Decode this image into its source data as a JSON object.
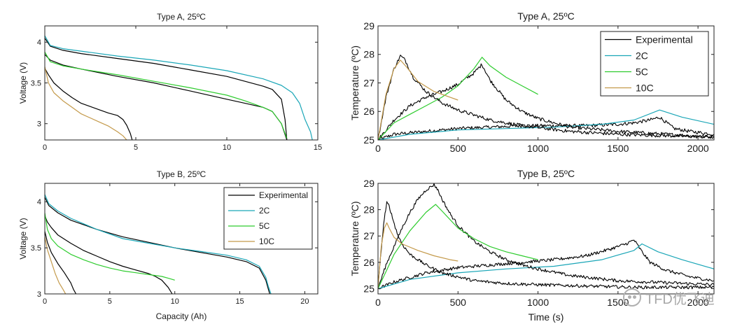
{
  "chart_data": [
    {
      "id": "p1",
      "type": "line",
      "title": "Type A, 25ºC",
      "xlabel": "",
      "ylabel": "Voltage (V)",
      "xlim": [
        0,
        15
      ],
      "ylim": [
        2.8,
        4.2
      ],
      "xticks": [
        0,
        5,
        10,
        15
      ],
      "yticks": [
        3,
        3.5,
        4
      ],
      "tick_labels_x": [
        "0",
        "5",
        "10",
        "15"
      ],
      "tick_labels_y": [
        "3",
        "3.5",
        "4"
      ],
      "legend": null,
      "series": [
        {
          "color": "#000000",
          "x": [
            0,
            0.3,
            1,
            2,
            4,
            6,
            8,
            10,
            11,
            12,
            12.5,
            13,
            13.2,
            13.3
          ],
          "y": [
            4.05,
            3.95,
            3.9,
            3.86,
            3.8,
            3.74,
            3.66,
            3.58,
            3.52,
            3.46,
            3.42,
            3.3,
            3.05,
            2.8
          ]
        },
        {
          "color": "#1aa6b7",
          "x": [
            0,
            0.3,
            1,
            2,
            4,
            6,
            8,
            10,
            12,
            13,
            13.6,
            14,
            14.3,
            14.6,
            14.7
          ],
          "y": [
            4.08,
            3.96,
            3.92,
            3.89,
            3.83,
            3.78,
            3.72,
            3.65,
            3.55,
            3.47,
            3.38,
            3.25,
            3.05,
            2.9,
            2.8
          ]
        },
        {
          "color": "#000000",
          "x": [
            0,
            0.3,
            1,
            2,
            4,
            6,
            8,
            10,
            11,
            12,
            12.5,
            13,
            13.3
          ],
          "y": [
            3.85,
            3.78,
            3.72,
            3.67,
            3.58,
            3.5,
            3.4,
            3.3,
            3.25,
            3.2,
            3.15,
            3.0,
            2.8
          ]
        },
        {
          "color": "#2ecc2e",
          "x": [
            0,
            0.3,
            1,
            2,
            4,
            6,
            8,
            10,
            11,
            12,
            12.5,
            13,
            13.3
          ],
          "y": [
            3.88,
            3.76,
            3.71,
            3.67,
            3.6,
            3.52,
            3.44,
            3.35,
            3.28,
            3.2,
            3.15,
            3.0,
            2.82
          ]
        },
        {
          "color": "#000000",
          "x": [
            0,
            0.2,
            0.5,
            1,
            1.5,
            2,
            3,
            3.5,
            4,
            4.3,
            4.5,
            4.7,
            4.8
          ],
          "y": [
            3.68,
            3.6,
            3.5,
            3.4,
            3.32,
            3.25,
            3.17,
            3.13,
            3.1,
            3.05,
            2.98,
            2.88,
            2.8
          ]
        },
        {
          "color": "#c49a4b",
          "x": [
            0,
            0.2,
            0.5,
            1,
            1.5,
            2,
            3,
            3.5,
            4,
            4.3,
            4.5
          ],
          "y": [
            3.7,
            3.5,
            3.38,
            3.28,
            3.2,
            3.12,
            3.02,
            2.97,
            2.9,
            2.85,
            2.8
          ]
        }
      ]
    },
    {
      "id": "p2",
      "type": "line",
      "title": "Type A, 25ºC",
      "xlabel": "",
      "ylabel": "Temperature (ºC)",
      "xlim": [
        0,
        2100
      ],
      "ylim": [
        25,
        29
      ],
      "xticks": [
        0,
        500,
        1000,
        1500,
        2000
      ],
      "yticks": [
        25,
        26,
        27,
        28,
        29
      ],
      "tick_labels_x": [
        "0",
        "500",
        "1000",
        "1500",
        "2000"
      ],
      "tick_labels_y": [
        "25",
        "26",
        "27",
        "28",
        "29"
      ],
      "legend": {
        "position": "top-right",
        "entries": [
          {
            "label": "Experimental",
            "color": "#000000"
          },
          {
            "label": "2C",
            "color": "#1aa6b7"
          },
          {
            "label": "5C",
            "color": "#2ecc2e"
          },
          {
            "label": "10C",
            "color": "#c49a4b"
          }
        ]
      },
      "series": [
        {
          "color": "#000000",
          "noise": 0.06,
          "x": [
            0,
            100,
            300,
            500,
            700,
            900,
            1100,
            1300,
            1500,
            1600,
            1700,
            1760,
            1850,
            1950,
            2100
          ],
          "y": [
            25.0,
            25.2,
            25.3,
            25.4,
            25.45,
            25.5,
            25.5,
            25.5,
            25.55,
            25.6,
            25.7,
            25.8,
            25.4,
            25.3,
            25.2
          ]
        },
        {
          "color": "#1aa6b7",
          "x": [
            0,
            200,
            500,
            800,
            1100,
            1400,
            1600,
            1760,
            1900,
            2100
          ],
          "y": [
            25.0,
            25.2,
            25.35,
            25.4,
            25.45,
            25.55,
            25.7,
            26.05,
            25.8,
            25.55
          ]
        },
        {
          "color": "#000000",
          "noise": 0.06,
          "x": [
            0,
            100,
            200,
            300,
            400,
            500,
            600,
            650,
            700,
            800,
            900,
            1000,
            1200,
            1500,
            1800,
            2100
          ],
          "y": [
            25.0,
            25.7,
            26.2,
            26.5,
            26.7,
            26.95,
            27.35,
            27.65,
            27.1,
            26.4,
            26.0,
            25.75,
            25.45,
            25.3,
            25.2,
            25.1
          ]
        },
        {
          "color": "#2ecc2e",
          "x": [
            0,
            100,
            200,
            300,
            400,
            500,
            600,
            650,
            700,
            800,
            900,
            1000
          ],
          "y": [
            25.0,
            25.6,
            25.9,
            26.2,
            26.5,
            26.9,
            27.5,
            27.9,
            27.6,
            27.2,
            26.9,
            26.6
          ]
        },
        {
          "color": "#000000",
          "noise": 0.06,
          "x": [
            0,
            50,
            100,
            140,
            170,
            220,
            300,
            400,
            500,
            700,
            900,
            1200,
            1500,
            2100
          ],
          "y": [
            25.0,
            26.5,
            27.5,
            27.95,
            27.8,
            27.2,
            26.7,
            26.3,
            26.05,
            25.7,
            25.5,
            25.3,
            25.2,
            25.1
          ]
        },
        {
          "color": "#c49a4b",
          "x": [
            0,
            50,
            100,
            140,
            180,
            250,
            350,
            450,
            500
          ],
          "y": [
            25.0,
            26.6,
            27.5,
            27.8,
            27.55,
            27.05,
            26.7,
            26.5,
            26.4
          ]
        }
      ]
    },
    {
      "id": "p3",
      "type": "line",
      "title": "Type B, 25ºC",
      "xlabel": "Capacity (Ah)",
      "ylabel": "Voltage (V)",
      "xlim": [
        0,
        21
      ],
      "ylim": [
        3,
        4.2
      ],
      "xticks": [
        0,
        5,
        10,
        15,
        20
      ],
      "yticks": [
        3,
        3.5,
        4
      ],
      "tick_labels_x": [
        "0",
        "5",
        "10",
        "15",
        "20"
      ],
      "tick_labels_y": [
        "3",
        "3.5",
        "4"
      ],
      "legend": {
        "position": "top-right",
        "entries": [
          {
            "label": "Experimental",
            "color": "#000000"
          },
          {
            "label": "2C",
            "color": "#1aa6b7"
          },
          {
            "label": "5C",
            "color": "#2ecc2e"
          },
          {
            "label": "10C",
            "color": "#c49a4b"
          }
        ]
      },
      "series": [
        {
          "color": "#000000",
          "x": [
            0,
            0.3,
            1,
            2,
            4,
            6,
            8,
            10,
            12,
            14,
            15.5,
            16.5,
            17,
            17.2,
            17.3
          ],
          "y": [
            4.05,
            3.96,
            3.88,
            3.8,
            3.7,
            3.62,
            3.56,
            3.5,
            3.45,
            3.4,
            3.35,
            3.28,
            3.15,
            3.05,
            3.0
          ]
        },
        {
          "color": "#1aa6b7",
          "x": [
            0,
            0.3,
            1,
            2,
            4,
            6,
            8,
            10,
            12,
            14,
            15.5,
            16.5,
            17,
            17.2,
            17.4
          ],
          "y": [
            4.08,
            3.98,
            3.9,
            3.82,
            3.7,
            3.6,
            3.55,
            3.5,
            3.46,
            3.42,
            3.37,
            3.3,
            3.18,
            3.08,
            3.0
          ]
        },
        {
          "color": "#000000",
          "x": [
            0,
            0.2,
            0.5,
            1,
            2,
            3,
            4,
            5,
            6,
            7,
            8,
            8.5,
            9,
            9.5,
            9.8
          ],
          "y": [
            3.85,
            3.78,
            3.72,
            3.64,
            3.55,
            3.47,
            3.41,
            3.35,
            3.3,
            3.26,
            3.22,
            3.19,
            3.15,
            3.07,
            3.0
          ]
        },
        {
          "color": "#2ecc2e",
          "x": [
            0,
            0.2,
            0.5,
            1,
            2,
            3,
            4,
            5,
            6,
            7,
            8,
            9,
            9.5,
            10.0
          ],
          "y": [
            3.88,
            3.7,
            3.6,
            3.52,
            3.43,
            3.37,
            3.32,
            3.28,
            3.25,
            3.23,
            3.21,
            3.19,
            3.17,
            3.15
          ]
        },
        {
          "color": "#000000",
          "x": [
            0,
            0.2,
            0.5,
            1,
            1.5,
            2,
            2.2,
            2.4
          ],
          "y": [
            3.68,
            3.56,
            3.45,
            3.33,
            3.23,
            3.12,
            3.05,
            3.0
          ]
        },
        {
          "color": "#c49a4b",
          "x": [
            0,
            0.2,
            0.5,
            0.8,
            1.1,
            1.4,
            1.6
          ],
          "y": [
            3.62,
            3.48,
            3.35,
            3.22,
            3.12,
            3.05,
            3.0
          ]
        }
      ]
    },
    {
      "id": "p4",
      "type": "line",
      "title": "Type B, 25ºC",
      "xlabel": "Time (s)",
      "ylabel": "Temperature (ºC)",
      "xlim": [
        0,
        2100
      ],
      "ylim": [
        24.8,
        29
      ],
      "xticks": [
        0,
        500,
        1000,
        1500,
        2000
      ],
      "yticks": [
        25,
        26,
        27,
        28,
        29
      ],
      "tick_labels_x": [
        "0",
        "500",
        "1000",
        "1500",
        "2000"
      ],
      "tick_labels_y": [
        "25",
        "26",
        "27",
        "28",
        "29"
      ],
      "legend": null,
      "series": [
        {
          "color": "#000000",
          "noise": 0.06,
          "x": [
            0,
            100,
            300,
            500,
            700,
            900,
            1100,
            1300,
            1450,
            1550,
            1600,
            1650,
            1700,
            1800,
            1950,
            2100
          ],
          "y": [
            25.0,
            25.25,
            25.6,
            25.8,
            25.9,
            26.0,
            26.1,
            26.25,
            26.5,
            26.7,
            26.85,
            26.4,
            26.0,
            25.7,
            25.45,
            25.3
          ]
        },
        {
          "color": "#1aa6b7",
          "x": [
            0,
            200,
            500,
            800,
            1100,
            1400,
            1600,
            1650,
            1750,
            1900,
            2100
          ],
          "y": [
            25.0,
            25.35,
            25.6,
            25.75,
            25.85,
            26.1,
            26.45,
            26.7,
            26.4,
            26.1,
            25.75
          ]
        },
        {
          "color": "#000000",
          "noise": 0.06,
          "x": [
            0,
            50,
            100,
            150,
            200,
            250,
            300,
            350,
            370,
            400,
            450,
            500,
            600,
            700,
            800,
            900,
            1000,
            1200,
            1500,
            2100
          ],
          "y": [
            25.0,
            25.9,
            26.6,
            27.3,
            27.9,
            28.4,
            28.75,
            28.95,
            28.8,
            28.4,
            27.85,
            27.4,
            26.8,
            26.4,
            26.1,
            25.9,
            25.75,
            25.5,
            25.3,
            25.15
          ]
        },
        {
          "color": "#2ecc2e",
          "x": [
            0,
            100,
            200,
            300,
            360,
            400,
            500,
            600,
            700,
            800,
            900,
            1000
          ],
          "y": [
            25.0,
            26.3,
            27.2,
            27.9,
            28.2,
            27.95,
            27.3,
            26.9,
            26.6,
            26.4,
            26.25,
            26.1
          ]
        },
        {
          "color": "#000000",
          "noise": 0.06,
          "x": [
            0,
            20,
            40,
            55,
            70,
            90,
            120,
            150,
            200,
            300,
            400,
            600,
            800,
            1000,
            1300,
            1600,
            2100
          ],
          "y": [
            25.0,
            26.5,
            27.7,
            28.25,
            28.15,
            27.7,
            27.1,
            26.7,
            26.3,
            25.9,
            25.6,
            25.3,
            25.2,
            25.15,
            25.1,
            25.05,
            25.05
          ]
        },
        {
          "color": "#c49a4b",
          "x": [
            0,
            20,
            40,
            55,
            70,
            100,
            150,
            250,
            350,
            450,
            500
          ],
          "y": [
            25.0,
            26.6,
            27.3,
            27.5,
            27.3,
            26.95,
            26.7,
            26.45,
            26.25,
            26.1,
            26.05
          ]
        }
      ]
    }
  ],
  "watermark": {
    "text": "TFD优飞迪",
    "icon": "wechat-icon"
  }
}
